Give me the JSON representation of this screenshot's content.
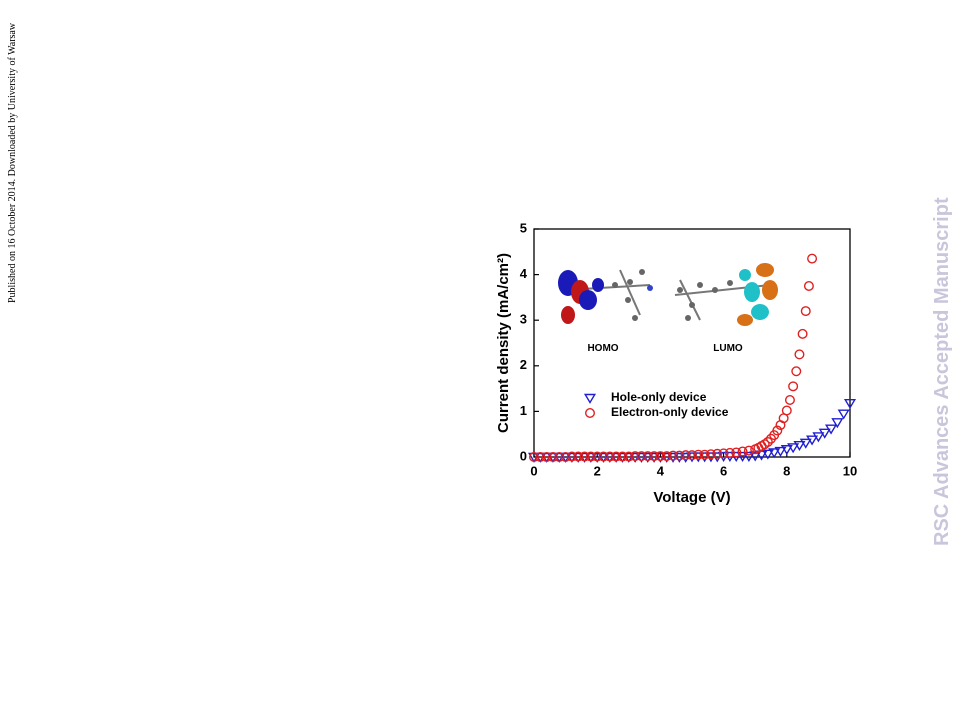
{
  "page": {
    "side_note": "Published on 16 October 2014. Downloaded by University of Warsaw",
    "watermark": "RSC Advances Accepted Manuscript"
  },
  "chart_data": {
    "type": "scatter",
    "xlabel": "Voltage (V)",
    "ylabel": "Current density (mA/cm²)",
    "inset_labels": [
      "HOMO",
      "LUMO"
    ],
    "xlim": [
      0,
      10
    ],
    "ylim": [
      0,
      5
    ],
    "xticks": [
      0,
      2,
      4,
      6,
      8,
      10
    ],
    "yticks": [
      0,
      1,
      2,
      3,
      4,
      5
    ],
    "legend": "center",
    "series": [
      {
        "name": "Hole-only device",
        "color": "#1f1fd0",
        "marker": "triangle-down",
        "x": [
          0,
          0.2,
          0.4,
          0.6,
          0.8,
          1.0,
          1.2,
          1.4,
          1.6,
          1.8,
          2.0,
          2.2,
          2.4,
          2.6,
          2.8,
          3.0,
          3.2,
          3.4,
          3.6,
          3.8,
          4.0,
          4.2,
          4.4,
          4.6,
          4.8,
          5.0,
          5.2,
          5.4,
          5.6,
          5.8,
          6.0,
          6.2,
          6.4,
          6.6,
          6.8,
          7.0,
          7.2,
          7.4,
          7.6,
          7.8,
          8.0,
          8.2,
          8.4,
          8.6,
          8.8,
          9.0,
          9.2,
          9.4,
          9.6,
          9.8,
          10.0
        ],
        "values": [
          0,
          0,
          0,
          0,
          0,
          0,
          0,
          0,
          0,
          0,
          0,
          0,
          0,
          0,
          0,
          0,
          0,
          0,
          0,
          0,
          0,
          0,
          0,
          0,
          0,
          0.01,
          0.01,
          0.01,
          0.01,
          0.01,
          0.02,
          0.02,
          0.02,
          0.02,
          0.02,
          0.03,
          0.05,
          0.07,
          0.1,
          0.13,
          0.17,
          0.21,
          0.26,
          0.31,
          0.38,
          0.45,
          0.53,
          0.62,
          0.76,
          0.95,
          1.18
        ]
      },
      {
        "name": "Electron-only device",
        "color": "#e02020",
        "marker": "circle",
        "x": [
          0,
          0.2,
          0.4,
          0.6,
          0.8,
          1.0,
          1.2,
          1.4,
          1.6,
          1.8,
          2.0,
          2.2,
          2.4,
          2.6,
          2.8,
          3.0,
          3.2,
          3.4,
          3.6,
          3.8,
          4.0,
          4.2,
          4.4,
          4.6,
          4.8,
          5.0,
          5.2,
          5.4,
          5.6,
          5.8,
          6.0,
          6.2,
          6.4,
          6.6,
          6.8,
          7.0,
          7.1,
          7.2,
          7.3,
          7.4,
          7.5,
          7.6,
          7.7,
          7.8,
          7.9,
          8.0,
          8.1,
          8.2,
          8.3,
          8.4,
          8.5,
          8.6,
          8.7,
          8.8
        ],
        "values": [
          0,
          0,
          0,
          0,
          0,
          0,
          0.01,
          0.01,
          0.01,
          0.01,
          0.01,
          0.01,
          0.01,
          0.01,
          0.01,
          0.01,
          0.02,
          0.02,
          0.02,
          0.02,
          0.02,
          0.02,
          0.03,
          0.03,
          0.04,
          0.04,
          0.05,
          0.05,
          0.06,
          0.07,
          0.08,
          0.09,
          0.1,
          0.12,
          0.14,
          0.17,
          0.2,
          0.24,
          0.28,
          0.33,
          0.4,
          0.48,
          0.58,
          0.7,
          0.85,
          1.02,
          1.25,
          1.55,
          1.88,
          2.25,
          2.7,
          3.2,
          3.75,
          4.35
        ]
      }
    ]
  }
}
